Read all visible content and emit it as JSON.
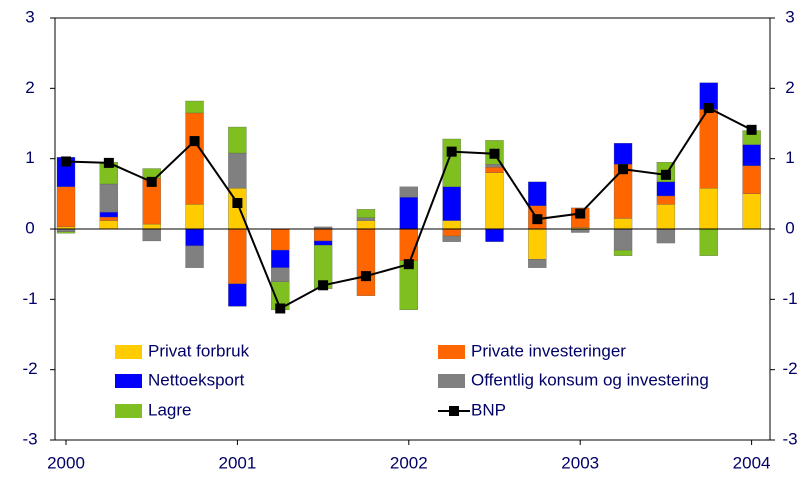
{
  "chart_data": {
    "type": "bar",
    "categories": [
      "2000",
      null,
      null,
      null,
      "2001",
      null,
      null,
      null,
      "2002",
      null,
      null,
      null,
      "2003",
      null,
      null,
      null,
      "2004"
    ],
    "series": [
      {
        "name": "Privat forbruk",
        "color": "#ffcc00",
        "values": [
          0.03,
          0.12,
          0.07,
          0.35,
          0.58,
          0,
          0,
          0.12,
          0,
          0.12,
          0.8,
          -0.43,
          0.02,
          0.15,
          0.35,
          0.58,
          0.5
        ]
      },
      {
        "name": "Private investeringer",
        "color": "#ff6600",
        "values": [
          0.57,
          0.05,
          0.65,
          1.3,
          -0.78,
          -0.3,
          -0.17,
          -0.95,
          -0.45,
          -0.1,
          0.08,
          0.33,
          0.28,
          0.77,
          0.12,
          1.12,
          0.4
        ]
      },
      {
        "name": "Nettoeksport",
        "color": "#0000ff",
        "values": [
          0.42,
          0.07,
          0,
          -0.24,
          -0.32,
          -0.25,
          -0.06,
          0,
          0.45,
          0.48,
          -0.18,
          0.34,
          0,
          0.3,
          0.2,
          0.38,
          0.3
        ]
      },
      {
        "name": "Offentlig konsum og investering",
        "color": "#808080",
        "values": [
          -0.04,
          0.4,
          -0.17,
          -0.31,
          0.5,
          -0.2,
          0.03,
          0.04,
          0.15,
          -0.08,
          0.04,
          -0.12,
          -0.05,
          -0.3,
          -0.2,
          0,
          0
        ]
      },
      {
        "name": "Lagre",
        "color": "#7fbf1f",
        "values": [
          -0.02,
          0.31,
          0.14,
          0.17,
          0.37,
          -0.4,
          -0.62,
          0.12,
          -0.7,
          0.68,
          0.34,
          0,
          0,
          -0.08,
          0.28,
          -0.38,
          0.2
        ]
      },
      {
        "name": "BNP",
        "color": "#000000",
        "type": "line",
        "values": [
          0.96,
          0.94,
          0.67,
          1.25,
          0.37,
          -1.13,
          -0.8,
          -0.67,
          -0.5,
          1.1,
          1.07,
          0.14,
          0.22,
          0.85,
          0.77,
          1.72,
          1.41
        ]
      }
    ],
    "ylim": [
      -3,
      3
    ],
    "yticks": [
      -3,
      -2,
      -1,
      0,
      1,
      2,
      3
    ],
    "y2lim": [
      -3,
      3
    ],
    "y2ticks": [
      -3,
      -2,
      -1,
      0,
      1,
      2,
      3
    ],
    "stacked": true,
    "legend": "bottom"
  }
}
